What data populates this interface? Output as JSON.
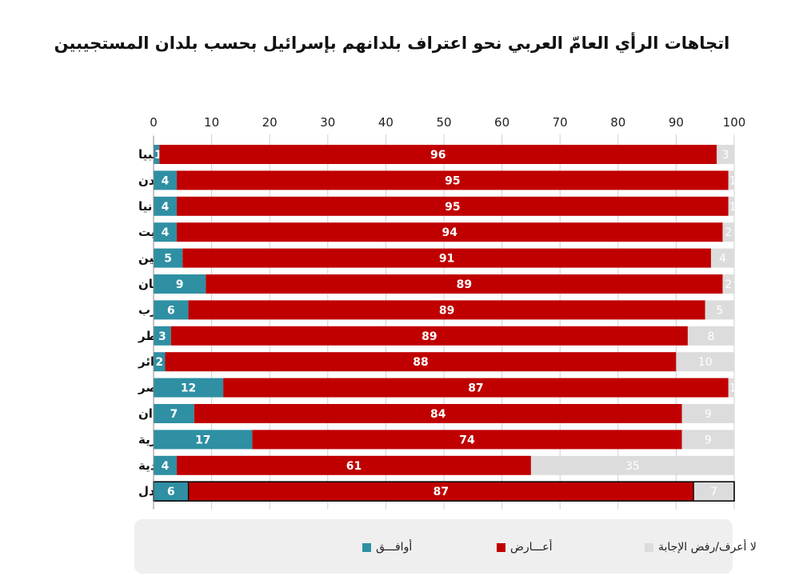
{
  "chart_data": {
    "type": "bar",
    "orientation": "horizontal-stacked",
    "title": "اتجاهات الرأي العامّ العربي نحو اعتراف بلدانهم بإسرائيل بحسب بلدان المستجيبين",
    "xlim": [
      0,
      100
    ],
    "xticks": [
      "0",
      "10",
      "20",
      "30",
      "40",
      "50",
      "60",
      "70",
      "80",
      "90",
      "100"
    ],
    "categories": [
      "ليبيا",
      "الأردن",
      "موريتانيا",
      "الكويت",
      "فلسطين",
      "لبنان",
      "المغرب",
      "قطر",
      "الجزائر",
      "مصر",
      "السودان",
      "سورية",
      "السعودية",
      "المعدل"
    ],
    "series": [
      {
        "name": "أوافـــق",
        "color": "#2f8fa3",
        "label_color": "#ffffff",
        "values": [
          1,
          4,
          4,
          4,
          5,
          9,
          6,
          3,
          2,
          12,
          7,
          17,
          4,
          6
        ]
      },
      {
        "name": "أعـــارض",
        "color": "#c00000",
        "label_color": "#ffffff",
        "values": [
          96,
          95,
          95,
          94,
          91,
          89,
          89,
          89,
          88,
          87,
          84,
          74,
          61,
          87
        ]
      },
      {
        "name": "لا أعرف/رفض الإجابة",
        "color": "#dcdcdc",
        "label_color": "#ffffff",
        "values": [
          3,
          1,
          1,
          2,
          4,
          2,
          5,
          8,
          10,
          1,
          9,
          9,
          35,
          7
        ]
      }
    ],
    "highlight_row": "المعدل",
    "legend_position": "bottom"
  }
}
